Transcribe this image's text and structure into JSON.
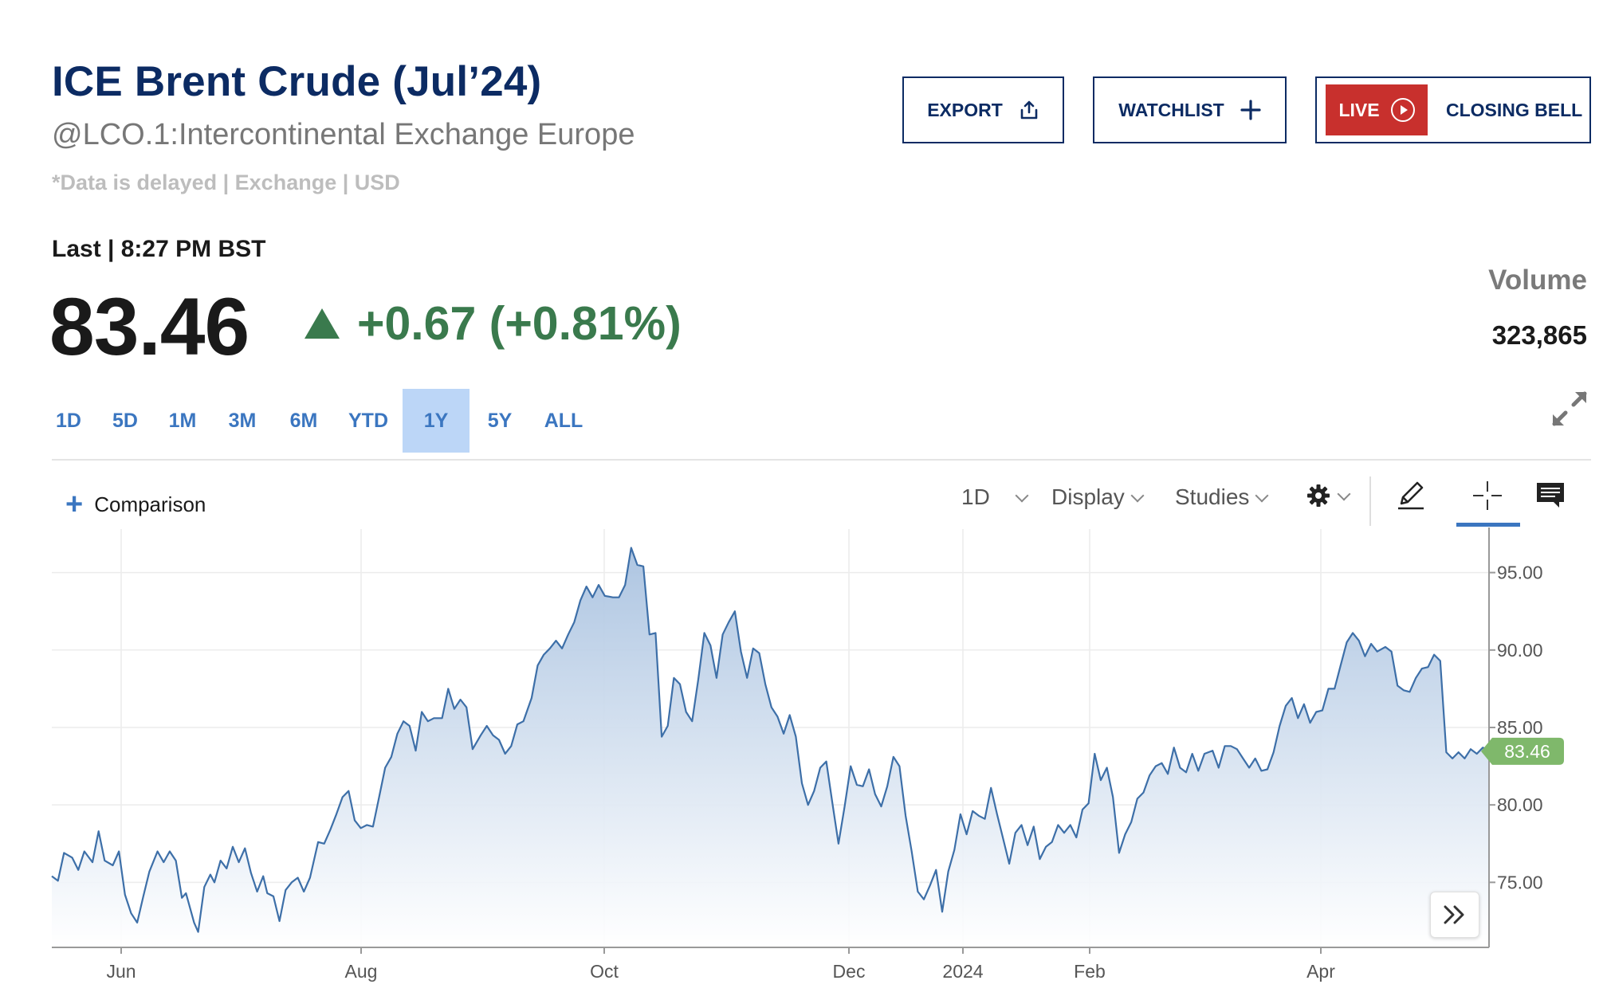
{
  "header": {
    "title": "ICE Brent Crude (Jul’24)",
    "subtitle": "@LCO.1:Intercontinental Exchange Europe",
    "disclaimer": "*Data is delayed | Exchange | USD",
    "last_label": "Last | 8:27 PM BST",
    "price": "83.46",
    "change": "+0.67 (+0.81%)",
    "change_color": "#3a7a4d",
    "volume_label": "Volume",
    "volume_value": "323,865"
  },
  "buttons": {
    "export": "EXPORT",
    "watchlist": "WATCHLIST",
    "live": "LIVE",
    "closing_bell": "CLOSING BELL"
  },
  "ranges": {
    "items": [
      "1D",
      "5D",
      "1M",
      "3M",
      "6M",
      "YTD",
      "1Y",
      "5Y",
      "ALL"
    ],
    "active": "1Y"
  },
  "toolbar": {
    "comparison": "Comparison",
    "interval": "1D",
    "display": "Display",
    "studies": "Studies"
  },
  "colors": {
    "title": "#0c2b63",
    "accent": "#3b76c0",
    "live": "#c8302d",
    "line": "#3d6fa8",
    "last_price_tag": "#7fb86b"
  },
  "chart_data": {
    "type": "area",
    "x_tick_labels": [
      "Jun",
      "Aug",
      "Oct",
      "Dec",
      "2024",
      "Feb",
      "Apr"
    ],
    "y_tick_labels": [
      "95.00",
      "90.00",
      "85.00",
      "80.00",
      "75.00"
    ],
    "y_ticks": [
      95,
      90,
      85,
      80,
      75
    ],
    "ylim": [
      70.8,
      97.5
    ],
    "last_value_label": "83.46",
    "last_value": 83.46,
    "grid": true,
    "points": [
      [
        0,
        75.4
      ],
      [
        3,
        75.1
      ],
      [
        6,
        76.9
      ],
      [
        10,
        76.6
      ],
      [
        13,
        75.8
      ],
      [
        16,
        77.0
      ],
      [
        20,
        76.3
      ],
      [
        23,
        78.3
      ],
      [
        26,
        76.4
      ],
      [
        30,
        76.1
      ],
      [
        33,
        77.0
      ],
      [
        36,
        74.2
      ],
      [
        39,
        73.0
      ],
      [
        42,
        72.4
      ],
      [
        45,
        74.1
      ],
      [
        48,
        75.7
      ],
      [
        52,
        77.0
      ],
      [
        55,
        76.3
      ],
      [
        58,
        77.0
      ],
      [
        61,
        76.4
      ],
      [
        64,
        74.0
      ],
      [
        66,
        74.3
      ],
      [
        70,
        72.4
      ],
      [
        72,
        71.8
      ],
      [
        75,
        74.7
      ],
      [
        78,
        75.5
      ],
      [
        80,
        75.0
      ],
      [
        83,
        76.4
      ],
      [
        86,
        75.9
      ],
      [
        89,
        77.3
      ],
      [
        92,
        76.3
      ],
      [
        95,
        77.2
      ],
      [
        98,
        75.6
      ],
      [
        101,
        74.4
      ],
      [
        104,
        75.4
      ],
      [
        106,
        74.3
      ],
      [
        109,
        74.1
      ],
      [
        112,
        72.5
      ],
      [
        115,
        74.5
      ],
      [
        118,
        75.0
      ],
      [
        121,
        75.3
      ],
      [
        124,
        74.4
      ],
      [
        127,
        75.3
      ],
      [
        131,
        77.6
      ],
      [
        134,
        77.5
      ],
      [
        137,
        78.4
      ],
      [
        140,
        79.4
      ],
      [
        143,
        80.5
      ],
      [
        146,
        80.9
      ],
      [
        149,
        79.0
      ],
      [
        152,
        78.5
      ],
      [
        155,
        78.7
      ],
      [
        158,
        78.6
      ],
      [
        161,
        80.5
      ],
      [
        164,
        82.4
      ],
      [
        167,
        83.1
      ],
      [
        170,
        84.6
      ],
      [
        173,
        85.4
      ],
      [
        176,
        85.1
      ],
      [
        179,
        83.5
      ],
      [
        182,
        86.0
      ],
      [
        185,
        85.4
      ],
      [
        188,
        85.6
      ],
      [
        192,
        85.6
      ],
      [
        195,
        87.5
      ],
      [
        198,
        86.2
      ],
      [
        201,
        86.8
      ],
      [
        204,
        86.3
      ],
      [
        207,
        83.6
      ],
      [
        211,
        84.5
      ],
      [
        214,
        85.1
      ],
      [
        217,
        84.5
      ],
      [
        220,
        84.2
      ],
      [
        223,
        83.3
      ],
      [
        226,
        83.8
      ],
      [
        229,
        85.2
      ],
      [
        232,
        85.4
      ],
      [
        236,
        86.9
      ],
      [
        239,
        89.0
      ],
      [
        242,
        89.7
      ],
      [
        245,
        90.1
      ],
      [
        248,
        90.6
      ],
      [
        251,
        90.1
      ],
      [
        254,
        91.0
      ],
      [
        257,
        91.8
      ],
      [
        260,
        93.2
      ],
      [
        263,
        94.1
      ],
      [
        266,
        93.4
      ],
      [
        269,
        94.2
      ],
      [
        272,
        93.5
      ],
      [
        276,
        93.4
      ],
      [
        279,
        93.4
      ],
      [
        282,
        94.2
      ],
      [
        285,
        96.6
      ],
      [
        288,
        95.5
      ],
      [
        291,
        95.4
      ],
      [
        294,
        91.0
      ],
      [
        297,
        91.1
      ],
      [
        300,
        84.4
      ],
      [
        303,
        85.1
      ],
      [
        306,
        88.2
      ],
      [
        309,
        87.8
      ],
      [
        312,
        86.0
      ],
      [
        315,
        85.4
      ],
      [
        318,
        88.1
      ],
      [
        321,
        91.1
      ],
      [
        324,
        90.3
      ],
      [
        327,
        88.2
      ],
      [
        330,
        91.0
      ],
      [
        333,
        91.8
      ],
      [
        336,
        92.5
      ],
      [
        339,
        89.9
      ],
      [
        342,
        88.2
      ],
      [
        345,
        90.1
      ],
      [
        348,
        89.8
      ],
      [
        351,
        87.8
      ],
      [
        354,
        86.3
      ],
      [
        357,
        85.7
      ],
      [
        360,
        84.6
      ],
      [
        363,
        85.8
      ],
      [
        366,
        84.4
      ],
      [
        369,
        81.4
      ],
      [
        372,
        80.0
      ],
      [
        375,
        80.9
      ],
      [
        378,
        82.4
      ],
      [
        381,
        82.8
      ],
      [
        384,
        80.1
      ],
      [
        387,
        77.5
      ],
      [
        390,
        79.9
      ],
      [
        393,
        82.5
      ],
      [
        396,
        81.3
      ],
      [
        399,
        81.2
      ],
      [
        402,
        82.3
      ],
      [
        405,
        80.7
      ],
      [
        408,
        79.9
      ],
      [
        411,
        81.2
      ],
      [
        414,
        83.1
      ],
      [
        417,
        82.5
      ],
      [
        420,
        79.3
      ],
      [
        423,
        77.0
      ],
      [
        426,
        74.4
      ],
      [
        429,
        73.9
      ],
      [
        432,
        74.8
      ],
      [
        435,
        75.8
      ],
      [
        438,
        73.1
      ],
      [
        441,
        75.7
      ],
      [
        444,
        77.1
      ],
      [
        447,
        79.4
      ],
      [
        450,
        78.1
      ],
      [
        453,
        79.6
      ],
      [
        456,
        79.3
      ],
      [
        459,
        79.1
      ],
      [
        462,
        81.1
      ],
      [
        465,
        79.4
      ],
      [
        468,
        77.8
      ],
      [
        471,
        76.2
      ],
      [
        474,
        78.2
      ],
      [
        477,
        78.7
      ],
      [
        480,
        77.4
      ],
      [
        483,
        78.6
      ],
      [
        486,
        76.5
      ],
      [
        489,
        77.3
      ],
      [
        492,
        77.6
      ],
      [
        495,
        78.7
      ],
      [
        498,
        78.2
      ],
      [
        501,
        78.7
      ],
      [
        504,
        77.9
      ],
      [
        507,
        79.7
      ],
      [
        510,
        80.1
      ],
      [
        513,
        83.3
      ],
      [
        516,
        81.6
      ],
      [
        519,
        82.4
      ],
      [
        522,
        80.5
      ],
      [
        525,
        76.9
      ],
      [
        528,
        78.1
      ],
      [
        531,
        78.9
      ],
      [
        534,
        80.4
      ],
      [
        537,
        80.8
      ],
      [
        540,
        81.9
      ],
      [
        543,
        82.5
      ],
      [
        546,
        82.7
      ],
      [
        549,
        82.0
      ],
      [
        552,
        83.7
      ],
      [
        555,
        82.4
      ],
      [
        558,
        82.1
      ],
      [
        561,
        83.3
      ],
      [
        564,
        82.2
      ],
      [
        567,
        83.3
      ],
      [
        571,
        83.5
      ],
      [
        574,
        82.4
      ],
      [
        577,
        83.8
      ],
      [
        580,
        83.8
      ],
      [
        583,
        83.6
      ],
      [
        586,
        83.0
      ],
      [
        589,
        82.4
      ],
      [
        592,
        83.0
      ],
      [
        595,
        82.2
      ],
      [
        598,
        82.3
      ],
      [
        601,
        83.4
      ],
      [
        604,
        85.1
      ],
      [
        607,
        86.4
      ],
      [
        610,
        86.9
      ],
      [
        613,
        85.6
      ],
      [
        616,
        86.5
      ],
      [
        619,
        85.3
      ],
      [
        622,
        86.0
      ],
      [
        625,
        86.1
      ],
      [
        628,
        87.5
      ],
      [
        631,
        87.5
      ],
      [
        634,
        89.0
      ],
      [
        637,
        90.5
      ],
      [
        640,
        91.1
      ],
      [
        643,
        90.6
      ],
      [
        646,
        89.6
      ],
      [
        649,
        90.4
      ],
      [
        652,
        89.9
      ],
      [
        656,
        90.2
      ],
      [
        659,
        89.9
      ],
      [
        662,
        87.7
      ],
      [
        665,
        87.4
      ],
      [
        668,
        87.3
      ],
      [
        671,
        88.2
      ],
      [
        674,
        88.8
      ],
      [
        677,
        88.9
      ],
      [
        680,
        89.7
      ],
      [
        683,
        89.3
      ],
      [
        686,
        83.4
      ],
      [
        689,
        83.0
      ],
      [
        692,
        83.4
      ],
      [
        695,
        83.0
      ],
      [
        698,
        83.6
      ],
      [
        701,
        83.3
      ],
      [
        704,
        83.7
      ],
      [
        707,
        83.46
      ]
    ]
  }
}
